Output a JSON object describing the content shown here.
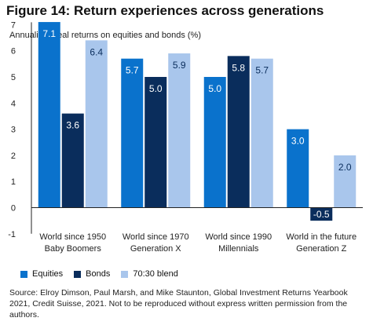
{
  "header": {
    "title": "Figure 14: Return experiences across generations",
    "subtitle": "Annualized real returns on equities and bonds (%)"
  },
  "colors": {
    "equities": "#0a72cc",
    "bonds": "#0a2d5c",
    "blend": "#a9c6ec",
    "axis": "#222222"
  },
  "chart_data": {
    "type": "bar",
    "categories": [
      [
        "World since 1950",
        "Baby Boomers"
      ],
      [
        "World since 1970",
        "Generation X"
      ],
      [
        "World since 1990",
        "Millennials"
      ],
      [
        "World in the future",
        "Generation Z"
      ]
    ],
    "series": [
      {
        "name": "Equities",
        "values": [
          7.1,
          5.7,
          5.0,
          3.0
        ],
        "labels": [
          "7.1",
          "5.7",
          "5.0",
          "3.0"
        ]
      },
      {
        "name": "Bonds",
        "values": [
          3.6,
          5.0,
          5.8,
          -0.5
        ],
        "labels": [
          "3.6",
          "5.0",
          "5.8",
          "-0.5"
        ]
      },
      {
        "name": "70:30 blend",
        "values": [
          6.4,
          5.9,
          5.7,
          2.0
        ],
        "labels": [
          "6.4",
          "5.9",
          "5.7",
          "2.0"
        ]
      }
    ],
    "ylim": [
      -1,
      7
    ],
    "yticks": [
      "-1",
      "0",
      "1",
      "2",
      "3",
      "4",
      "5",
      "6",
      "7"
    ],
    "grid": false,
    "legend": "bottom"
  },
  "source": "Source: Elroy Dimson, Paul Marsh, and Mike Staunton, Global Investment Returns Yearbook 2021, Credit Suisse, 2021. Not to be reproduced without express written permission from the authors."
}
